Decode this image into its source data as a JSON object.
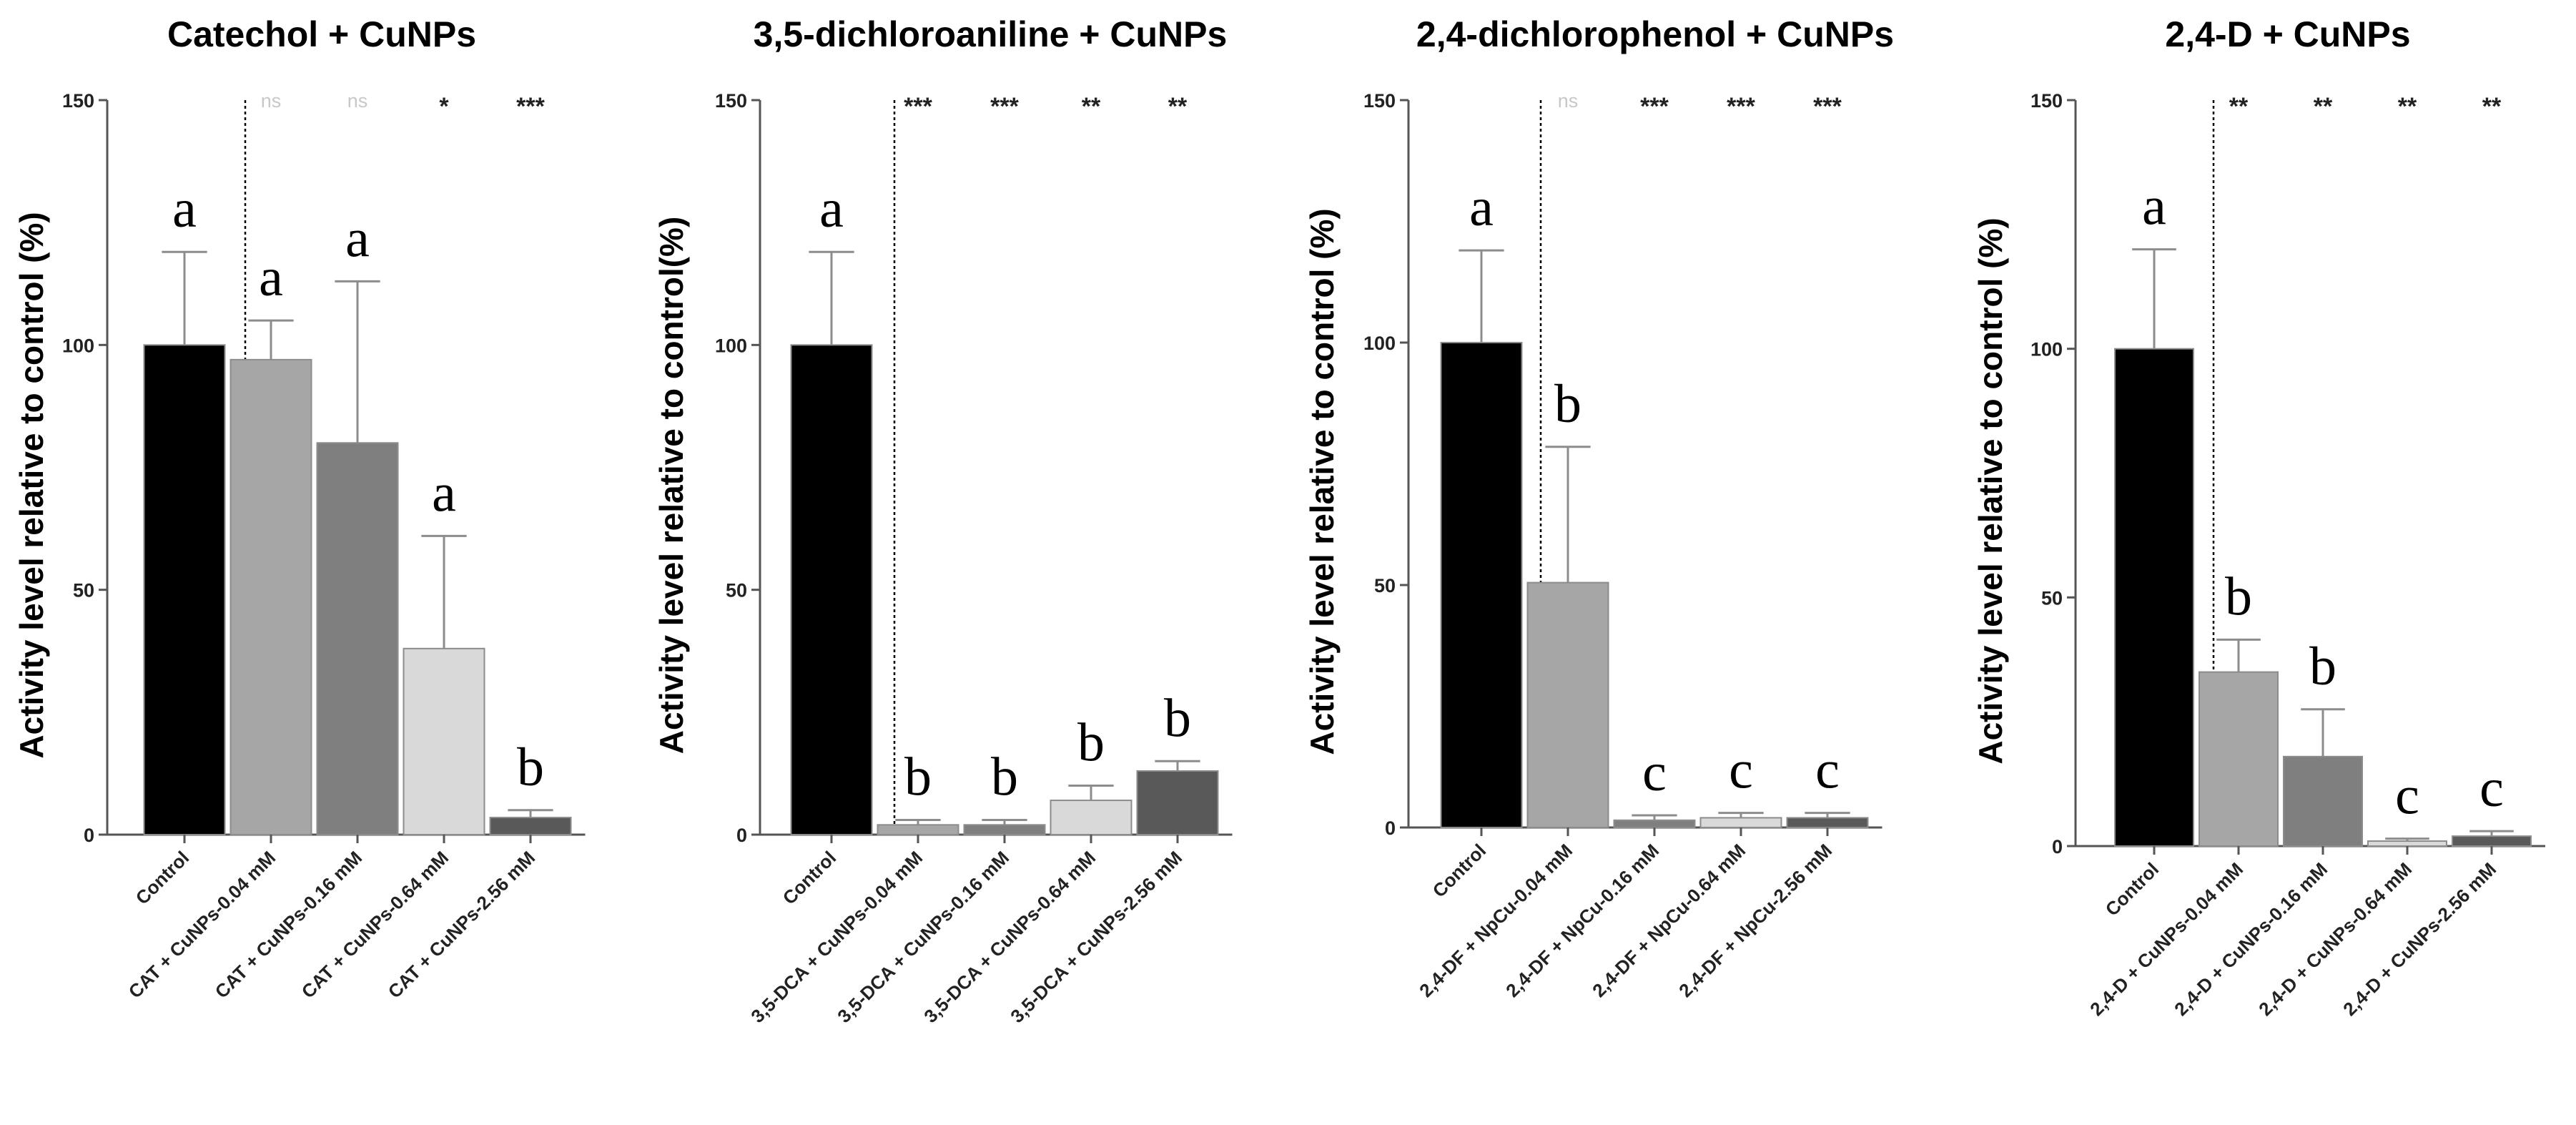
{
  "chart_data": [
    {
      "type": "bar",
      "title": "Catechol + CuNPs",
      "ylabel": "Activity level relative to control (%)",
      "xlabel": "",
      "ylim": [
        0,
        150
      ],
      "yticks": [
        "0",
        "50",
        "100",
        "150"
      ],
      "categories": [
        "Control",
        "CAT + CuNPs-0.04 mM",
        "CAT + CuNPs-0.16 mM",
        "CAT + CuNPs-0.64 mM",
        "CAT + CuNPs-2.56 mM"
      ],
      "values": [
        100,
        97,
        80,
        38,
        3.5
      ],
      "errors": [
        19,
        8,
        33,
        23,
        1.5
      ],
      "colors": [
        "#000000",
        "#a6a6a6",
        "#7f7f7f",
        "#d9d9d9",
        "#595959"
      ],
      "letters": [
        "a",
        "a",
        "a",
        "a",
        "b"
      ],
      "significance": [
        "",
        "ns",
        "ns",
        "*",
        "***"
      ]
    },
    {
      "type": "bar",
      "title": "3,5-dichloroaniline + CuNPs",
      "ylabel": "Activity level relative to control(%)",
      "xlabel": "",
      "ylim": [
        0,
        150
      ],
      "yticks": [
        "0",
        "50",
        "100",
        "150"
      ],
      "categories": [
        "Control",
        "3,5-DCA + CuNPs-0.04 mM",
        "3,5-DCA + CuNPs-0.16 mM",
        "3,5-DCA + CuNPs-0.64 mM",
        "3,5-DCA + CuNPs-2.56 mM"
      ],
      "values": [
        100,
        2,
        2,
        7,
        13
      ],
      "errors": [
        19,
        1,
        1,
        3,
        2
      ],
      "colors": [
        "#000000",
        "#a6a6a6",
        "#7f7f7f",
        "#d9d9d9",
        "#595959"
      ],
      "letters": [
        "a",
        "b",
        "b",
        "b",
        "b"
      ],
      "significance": [
        "",
        "***",
        "***",
        "**",
        "**"
      ]
    },
    {
      "type": "bar",
      "title": "2,4-dichlorophenol + CuNPs",
      "ylabel": "Activity level relative to control (%)",
      "xlabel": "",
      "ylim": [
        0,
        150
      ],
      "yticks": [
        "0",
        "50",
        "100",
        "150"
      ],
      "categories": [
        "Control",
        "2,4-DF + NpCu-0.04 mM",
        "2,4-DF + NpCu-0.16 mM",
        "2,4-DF + NpCu-0.64 mM",
        "2,4-DF + NpCu-2.56 mM"
      ],
      "values": [
        100,
        50.5,
        1.5,
        2,
        2
      ],
      "errors": [
        19,
        28,
        1,
        1,
        1
      ],
      "colors": [
        "#000000",
        "#a6a6a6",
        "#7f7f7f",
        "#d9d9d9",
        "#595959"
      ],
      "letters": [
        "a",
        "b",
        "c",
        "c",
        "c"
      ],
      "significance": [
        "",
        "ns",
        "***",
        "***",
        "***"
      ]
    },
    {
      "type": "bar",
      "title": "2,4-D + CuNPs",
      "ylabel": "Activity level relative to control (%)",
      "xlabel": "",
      "ylim": [
        0,
        150
      ],
      "yticks": [
        "0",
        "50",
        "100",
        "150"
      ],
      "categories": [
        "Control",
        "2,4-D + CuNPs-0.04 mM",
        "2,4-D + CuNPs-0.16 mM",
        "2,4-D + CuNPs-0.64 mM",
        "2,4-D + CuNPs-2.56 mM"
      ],
      "values": [
        100,
        35,
        18,
        1,
        2
      ],
      "errors": [
        20,
        6.5,
        9.5,
        0.5,
        1
      ],
      "colors": [
        "#000000",
        "#a6a6a6",
        "#7f7f7f",
        "#d9d9d9",
        "#595959"
      ],
      "letters": [
        "a",
        "b",
        "b",
        "c",
        "c"
      ],
      "significance": [
        "",
        "**",
        "**",
        "**",
        "**"
      ]
    }
  ]
}
